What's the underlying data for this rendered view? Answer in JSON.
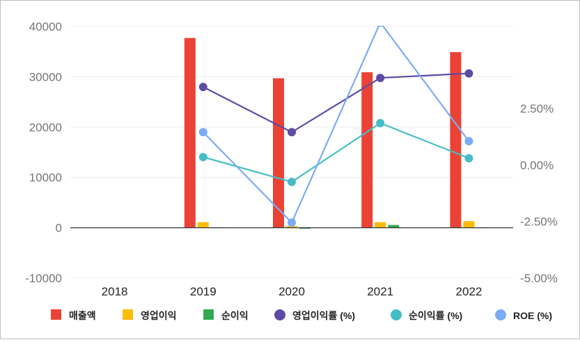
{
  "chart_data": {
    "type": "bar",
    "categories": [
      "2018",
      "2019",
      "2020",
      "2021",
      "2022"
    ],
    "left_axis": {
      "ticks": [
        "40000",
        "30000",
        "20000",
        "10000",
        "0",
        "-10000"
      ],
      "ylim": [
        -10000,
        40000
      ]
    },
    "right_axis": {
      "ticks": [
        "2.50%",
        "0.00%",
        "-2.50%",
        "-5.00%"
      ],
      "ylim": [
        -5.0,
        4.0
      ]
    },
    "bar_series": [
      {
        "name": "매출액",
        "color": "#ea4335",
        "values": [
          null,
          37700,
          29700,
          30900,
          34900
        ]
      },
      {
        "name": "영업이익",
        "color": "#fbbc04",
        "values": [
          null,
          1100,
          350,
          1100,
          1300
        ]
      },
      {
        "name": "순이익",
        "color": "#34a853",
        "values": [
          null,
          50,
          -200,
          550,
          60
        ]
      }
    ],
    "line_series": [
      {
        "name": "영업이익률 (%)",
        "color": "#5e4ba6",
        "values": [
          null,
          3.45,
          1.45,
          3.85,
          4.05
        ]
      },
      {
        "name": "순이익률 (%)",
        "color": "#46bdc6",
        "values": [
          null,
          0.35,
          -0.75,
          1.85,
          0.3
        ]
      },
      {
        "name": "ROE (%)",
        "color": "#7baaf7",
        "values": [
          null,
          1.45,
          -2.55,
          6.3,
          1.05
        ]
      }
    ],
    "legend": {
      "position": "bottom",
      "items": [
        {
          "label": "매출액",
          "color": "#ea4335",
          "shape": "square"
        },
        {
          "label": "영업이익",
          "color": "#fbbc04",
          "shape": "square"
        },
        {
          "label": "순이익",
          "color": "#34a853",
          "shape": "square"
        },
        {
          "label": "영업이익률 (%)",
          "color": "#5e4ba6",
          "shape": "circle"
        },
        {
          "label": "순이익률 (%)",
          "color": "#46bdc6",
          "shape": "circle"
        },
        {
          "label": "ROE (%)",
          "color": "#7baaf7",
          "shape": "circle"
        }
      ]
    },
    "grid": true
  }
}
